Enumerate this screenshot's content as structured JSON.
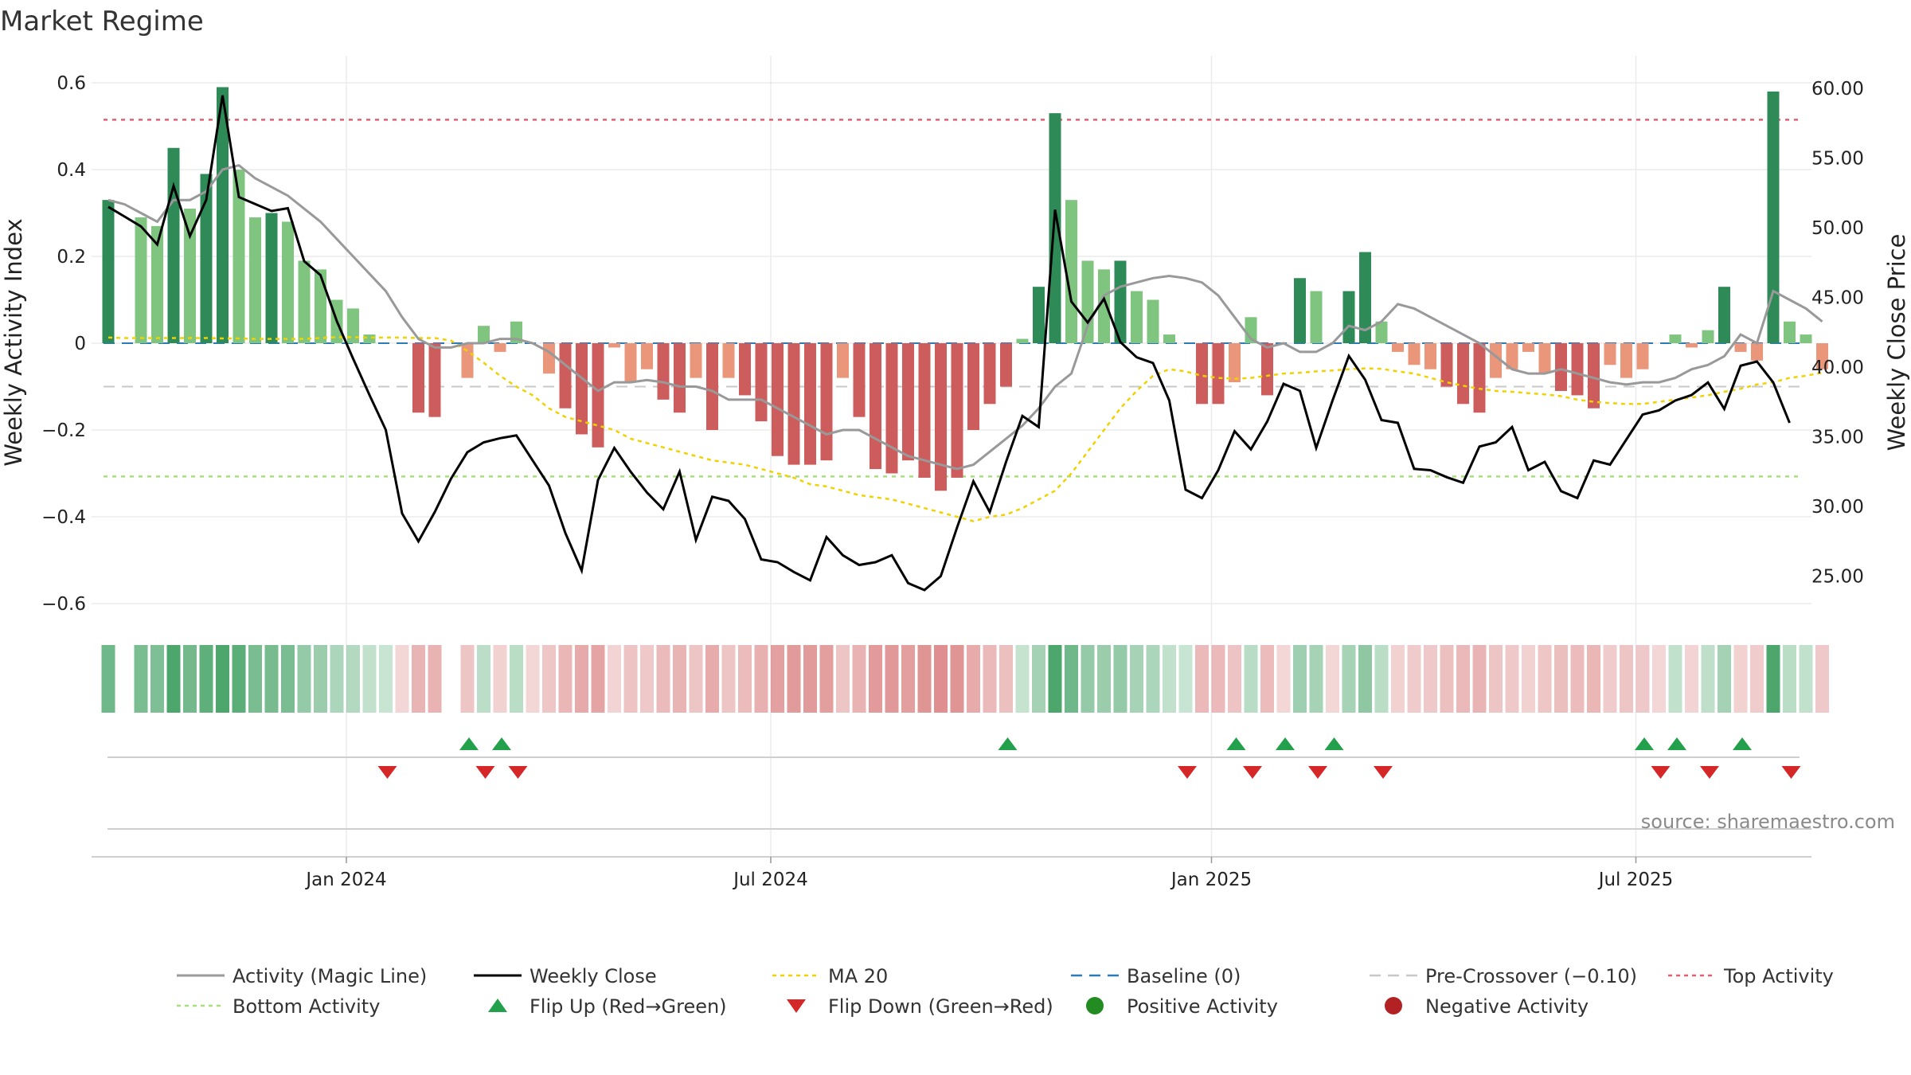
{
  "chart_data": {
    "type": "bar",
    "title": "Market Regime",
    "ylabel_left": "Weekly Activity Index",
    "ylabel_right": "Weekly Close Price",
    "ylim_left": [
      -0.6,
      0.6
    ],
    "yticks_left": [
      "0.6",
      "0.4",
      "0.2",
      "0",
      "−0.2",
      "−0.4",
      "−0.6"
    ],
    "ylim_right": [
      25,
      60
    ],
    "yticks_right": [
      "60.00",
      "55.00",
      "50.00",
      "45.00",
      "40.00",
      "35.00",
      "30.00",
      "25.00"
    ],
    "x_tick_labels": [
      "Jan 2024",
      "Jul 2024",
      "Jan 2025",
      "Jul 2025"
    ],
    "source": "source: sharemaestro.com",
    "grid": true,
    "reference_lines": {
      "baseline": 0,
      "pre_crossover": -0.1,
      "top_activity": 0.515,
      "bottom_activity": -0.307
    },
    "activity_bars": [
      0.33,
      0,
      0.29,
      0.27,
      0.45,
      0.31,
      0.39,
      0.59,
      0.4,
      0.29,
      0.3,
      0.28,
      0.19,
      0.17,
      0.1,
      0.08,
      0.02,
      0,
      0,
      -0.16,
      -0.17,
      0,
      -0.08,
      0.04,
      -0.02,
      0.05,
      0,
      -0.07,
      -0.15,
      -0.21,
      -0.24,
      -0.01,
      -0.09,
      -0.06,
      -0.13,
      -0.16,
      -0.08,
      -0.2,
      -0.08,
      -0.12,
      -0.18,
      -0.26,
      -0.28,
      -0.28,
      -0.27,
      -0.08,
      -0.17,
      -0.29,
      -0.3,
      -0.27,
      -0.31,
      -0.34,
      -0.31,
      -0.2,
      -0.14,
      -0.1,
      0.01,
      0.13,
      0.53,
      0.33,
      0.19,
      0.17,
      0.19,
      0.12,
      0.1,
      0.02,
      0,
      -0.14,
      -0.14,
      -0.09,
      0.06,
      -0.12,
      0,
      0.15,
      0.12,
      0,
      0.12,
      0.21,
      0.05,
      -0.02,
      -0.05,
      -0.06,
      -0.1,
      -0.14,
      -0.16,
      -0.08,
      -0.06,
      -0.02,
      -0.07,
      -0.11,
      -0.12,
      -0.15,
      -0.05,
      -0.08,
      -0.06,
      0,
      0.02,
      -0.01,
      0.03,
      0.13,
      -0.02,
      -0.04,
      0.58,
      0.05,
      0.02,
      -0.06
    ],
    "weekly_close": [
      51.5,
      50.8,
      50.1,
      48.8,
      53.0,
      49.4,
      52.0,
      59.5,
      52.2,
      51.7,
      51.2,
      51.4,
      47.6,
      46.6,
      43.3,
      40.6,
      38.0,
      35.5,
      29.5,
      27.5,
      29.6,
      32.0,
      33.9,
      34.6,
      34.9,
      35.1,
      33.3,
      31.5,
      28.1,
      25.4,
      31.9,
      34.2,
      32.5,
      31.0,
      29.8,
      32.5,
      27.6,
      30.7,
      30.4,
      29.1,
      26.2,
      26.0,
      25.3,
      24.7,
      27.8,
      26.5,
      25.8,
      26.0,
      26.5,
      24.5,
      24.0,
      25.0,
      28.5,
      31.8,
      29.6,
      33.2,
      36.5,
      35.7,
      51.3,
      44.7,
      43.2,
      44.9,
      41.8,
      40.7,
      40.3,
      37.6,
      31.2,
      30.6,
      32.6,
      35.4,
      34.1,
      36.1,
      38.8,
      38.3,
      34.2,
      37.6,
      40.8,
      39.1,
      36.2,
      36.0,
      32.7,
      32.6,
      32.1,
      31.7,
      34.3,
      34.6,
      35.7,
      32.6,
      33.2,
      31.1,
      30.6,
      33.3,
      33.0,
      34.8,
      36.6,
      36.9,
      37.6,
      38.0,
      38.9,
      37.0,
      40.1,
      40.4,
      38.9,
      36.0
    ],
    "magic_line": [
      0.33,
      0.32,
      0.3,
      0.28,
      0.33,
      0.33,
      0.35,
      0.4,
      0.41,
      0.38,
      0.36,
      0.34,
      0.31,
      0.28,
      0.24,
      0.2,
      0.16,
      0.12,
      0.06,
      0.01,
      -0.01,
      -0.01,
      0.0,
      0.0,
      0.01,
      0.01,
      0.0,
      -0.02,
      -0.05,
      -0.08,
      -0.11,
      -0.09,
      -0.09,
      -0.085,
      -0.09,
      -0.1,
      -0.1,
      -0.11,
      -0.13,
      -0.13,
      -0.13,
      -0.15,
      -0.17,
      -0.19,
      -0.21,
      -0.2,
      -0.2,
      -0.22,
      -0.24,
      -0.26,
      -0.27,
      -0.28,
      -0.29,
      -0.28,
      -0.25,
      -0.22,
      -0.19,
      -0.15,
      -0.1,
      -0.07,
      0.04,
      0.11,
      0.13,
      0.14,
      0.15,
      0.155,
      0.15,
      0.14,
      0.11,
      0.06,
      0.01,
      -0.01,
      0.0,
      -0.02,
      -0.02,
      0.0,
      0.04,
      0.03,
      0.05,
      0.09,
      0.08,
      0.06,
      0.04,
      0.02,
      0.0,
      -0.03,
      -0.06,
      -0.07,
      -0.07,
      -0.06,
      -0.07,
      -0.08,
      -0.09,
      -0.095,
      -0.09,
      -0.09,
      -0.08,
      -0.06,
      -0.05,
      -0.03,
      0.02,
      0.0,
      0.12,
      0.1,
      0.08,
      0.05
    ],
    "ma20": [
      0.013,
      0.012,
      0.012,
      0.012,
      0.012,
      0.012,
      0.012,
      0.011,
      0.011,
      0.01,
      0.01,
      0.01,
      0.01,
      0.012,
      0.014,
      0.014,
      0.013,
      0.013,
      0.013,
      0.012,
      0.012,
      0.006,
      -0.018,
      -0.045,
      -0.075,
      -0.1,
      -0.12,
      -0.15,
      -0.17,
      -0.18,
      -0.19,
      -0.2,
      -0.22,
      -0.23,
      -0.24,
      -0.25,
      -0.26,
      -0.27,
      -0.275,
      -0.28,
      -0.29,
      -0.3,
      -0.31,
      -0.325,
      -0.33,
      -0.34,
      -0.35,
      -0.355,
      -0.36,
      -0.37,
      -0.38,
      -0.39,
      -0.4,
      -0.41,
      -0.4,
      -0.395,
      -0.38,
      -0.36,
      -0.34,
      -0.3,
      -0.25,
      -0.2,
      -0.15,
      -0.11,
      -0.075,
      -0.06,
      -0.065,
      -0.075,
      -0.08,
      -0.082,
      -0.08,
      -0.075,
      -0.07,
      -0.068,
      -0.065,
      -0.063,
      -0.06,
      -0.058,
      -0.059,
      -0.065,
      -0.07,
      -0.08,
      -0.09,
      -0.098,
      -0.105,
      -0.11,
      -0.112,
      -0.115,
      -0.118,
      -0.122,
      -0.13,
      -0.135,
      -0.138,
      -0.14,
      -0.14,
      -0.135,
      -0.13,
      -0.125,
      -0.12,
      -0.112,
      -0.105,
      -0.095,
      -0.09,
      -0.08,
      -0.075,
      -0.068
    ],
    "strip_sign": [
      1,
      0,
      1,
      1,
      1,
      1,
      1,
      1,
      1,
      1,
      1,
      1,
      1,
      1,
      1,
      1,
      1,
      1,
      -1,
      -1,
      -1,
      0,
      -1,
      1,
      -1,
      1,
      -1,
      -1,
      -1,
      -1,
      -1,
      -1,
      -1,
      -1,
      -1,
      -1,
      -1,
      -1,
      -1,
      -1,
      -1,
      -1,
      -1,
      -1,
      -1,
      -1,
      -1,
      -1,
      -1,
      -1,
      -1,
      -1,
      -1,
      -1,
      -1,
      -1,
      1,
      1,
      1,
      1,
      1,
      1,
      1,
      1,
      1,
      1,
      1,
      -1,
      -1,
      -1,
      1,
      -1,
      -1,
      1,
      1,
      -1,
      1,
      1,
      1,
      -1,
      -1,
      -1,
      -1,
      -1,
      -1,
      -1,
      -1,
      -1,
      -1,
      -1,
      -1,
      -1,
      -1,
      -1,
      -1,
      -1,
      1,
      -1,
      1,
      1,
      -1,
      -1,
      1,
      1,
      1,
      -1
    ],
    "flip_up_weeks": [
      22,
      24,
      55,
      69,
      72,
      75,
      94,
      96,
      100
    ],
    "flip_down_weeks": [
      17,
      23,
      25,
      66,
      70,
      74,
      78,
      95,
      98,
      103
    ],
    "legend": [
      "Activity (Magic Line)",
      "Weekly Close",
      "MA 20",
      "Baseline (0)",
      "Pre-Crossover (−0.10)",
      "Top Activity",
      "Bottom Activity",
      "Flip Up (Red→Green)",
      "Flip Down (Green→Red)",
      "Positive Activity",
      "Negative Activity"
    ],
    "colors": {
      "dark_green": "#2e8b57",
      "light_green": "#7fc47f",
      "dark_red": "#cd5c5c",
      "light_red": "#e9967a",
      "magic_line": "#999999",
      "weekly_close": "#000000",
      "ma20": "#f0d200",
      "baseline": "#2b7bb9",
      "pre_crossover": "#c8c8c8",
      "top_activity": "#e06070",
      "bottom_activity": "#a6e07a",
      "flip_up": "#22a04b",
      "flip_down": "#d62728",
      "positive_dot": "#228b22",
      "negative_dot": "#b22222"
    }
  }
}
